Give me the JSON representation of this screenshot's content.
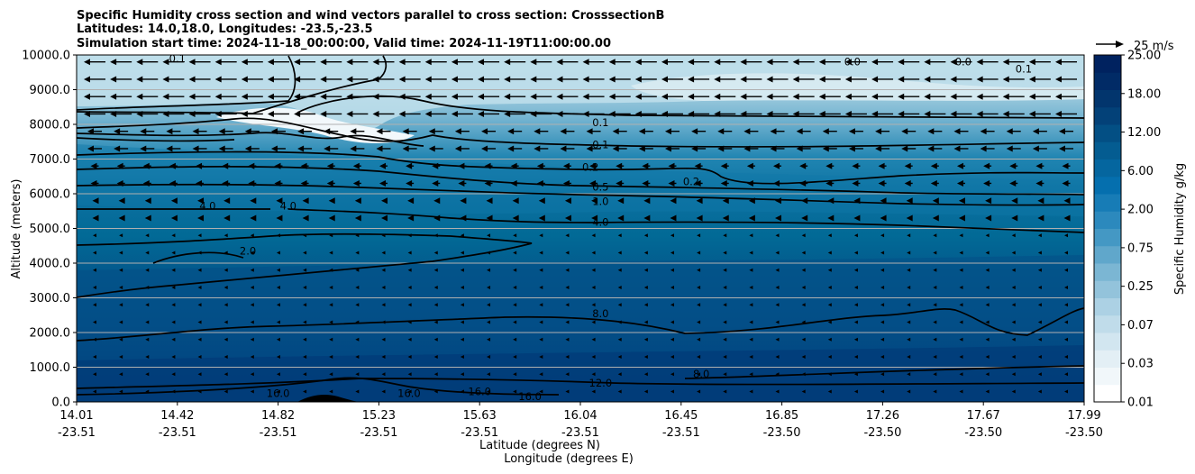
{
  "chart_data": {
    "type": "contour",
    "title_lines": [
      "Specific Humidity cross section and wind vectors parallel to cross section: CrosssectionB",
      "Latitudes: 14.0,18.0, Longitudes: -23.5,-23.5",
      "Simulation start time: 2024-11-18_00:00:00, Valid time: 2024-11-19T11:00:00.00"
    ],
    "ylabel": "Altitude (meters)",
    "xlabel_lines": [
      "Latitude (degrees N)",
      "Longitude (degrees E)"
    ],
    "ylim": [
      0,
      10000
    ],
    "y_ticks": [
      0,
      1000,
      2000,
      3000,
      4000,
      5000,
      6000,
      7000,
      8000,
      9000,
      10000
    ],
    "y_tick_labels": [
      "0.0",
      "1000.0",
      "2000.0",
      "3000.0",
      "4000.0",
      "5000.0",
      "6000.0",
      "7000.0",
      "8000.0",
      "9000.0",
      "10000.0"
    ],
    "grid": "horizontal",
    "x_ticks": [
      {
        "lat": "14.01",
        "lon": "-23.51"
      },
      {
        "lat": "14.42",
        "lon": "-23.51"
      },
      {
        "lat": "14.82",
        "lon": "-23.51"
      },
      {
        "lat": "15.23",
        "lon": "-23.51"
      },
      {
        "lat": "15.63",
        "lon": "-23.51"
      },
      {
        "lat": "16.04",
        "lon": "-23.51"
      },
      {
        "lat": "16.45",
        "lon": "-23.51"
      },
      {
        "lat": "16.85",
        "lon": "-23.50"
      },
      {
        "lat": "17.26",
        "lon": "-23.50"
      },
      {
        "lat": "17.67",
        "lon": "-23.50"
      },
      {
        "lat": "17.99",
        "lon": "-23.50"
      }
    ],
    "colorbar": {
      "label": "Specific Humidity g/kg",
      "tick_labels": [
        "0.01",
        "0.03",
        "0.07",
        "0.25",
        "0.75",
        "2.00",
        "6.00",
        "12.00",
        "18.00",
        "25.00"
      ],
      "levels": 20,
      "colormap": "PuBu",
      "color_light": "#ffffff",
      "color_dark": "#002a6a"
    },
    "quiver_key": {
      "label": "25 m/s"
    },
    "contour_levels": [
      "0.1",
      "0.2",
      "0.5",
      "1.0",
      "2.0",
      "4.0",
      "8.0",
      "12.0",
      "16.0"
    ],
    "contour_labels": [
      {
        "text": "0.1",
        "x": 0.1,
        "y": 9900
      },
      {
        "text": "0.1",
        "x": 0.52,
        "y": 8050
      },
      {
        "text": "0.1",
        "x": 0.52,
        "y": 7420
      },
      {
        "text": "0.2",
        "x": 0.51,
        "y": 6760
      },
      {
        "text": "0.2",
        "x": 0.61,
        "y": 6350
      },
      {
        "text": "0.5",
        "x": 0.52,
        "y": 6200
      },
      {
        "text": "1.0",
        "x": 0.52,
        "y": 5780
      },
      {
        "text": "4.0",
        "x": 0.52,
        "y": 5180
      },
      {
        "text": "4.0",
        "x": 0.13,
        "y": 5650
      },
      {
        "text": "4.0",
        "x": 0.21,
        "y": 5650
      },
      {
        "text": "2.0",
        "x": 0.17,
        "y": 4350
      },
      {
        "text": "8.0",
        "x": 0.52,
        "y": 2540
      },
      {
        "text": "8.0",
        "x": 0.62,
        "y": 800
      },
      {
        "text": "12.0",
        "x": 0.52,
        "y": 550
      },
      {
        "text": "16.0",
        "x": 0.2,
        "y": 250
      },
      {
        "text": "16.0",
        "x": 0.33,
        "y": 250
      },
      {
        "text": "16.0",
        "x": 0.4,
        "y": 300
      },
      {
        "text": "16.0",
        "x": 0.45,
        "y": 150
      },
      {
        "text": "0.0",
        "x": 0.77,
        "y": 9800
      },
      {
        "text": "0.0",
        "x": 0.88,
        "y": 9800
      },
      {
        "text": "0.1",
        "x": 0.94,
        "y": 9600
      }
    ]
  }
}
